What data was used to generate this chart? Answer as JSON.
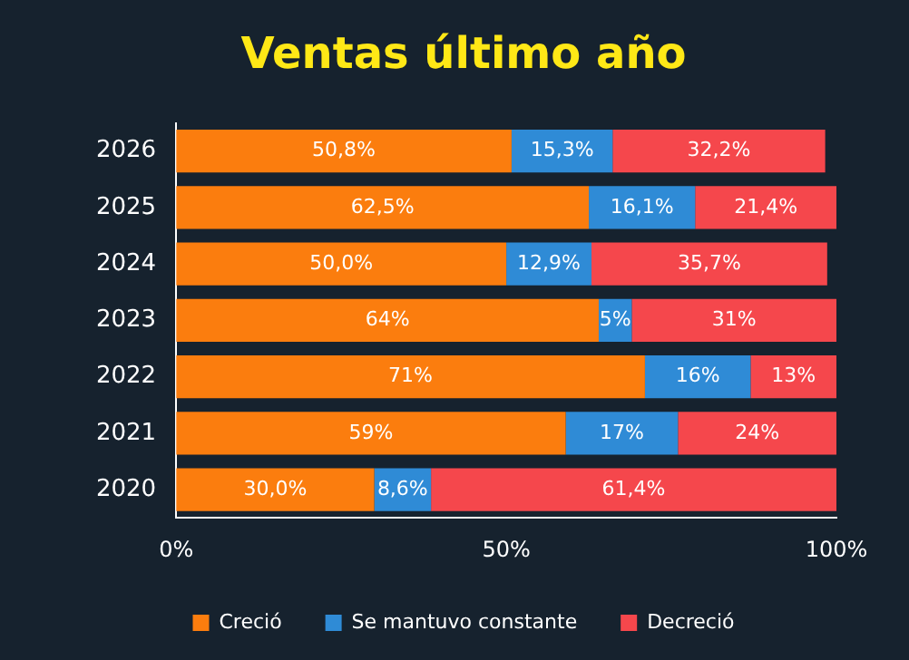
{
  "chart_data": {
    "type": "bar",
    "title": "Ventas último año",
    "orientation": "horizontal",
    "stacked": true,
    "legend": "bottom",
    "grid": false,
    "categories": [
      "2026",
      "2025",
      "2024",
      "2023",
      "2022",
      "2021",
      "2020"
    ],
    "xlim": [
      0,
      100
    ],
    "xticks": [
      {
        "value": 0,
        "label": "0%"
      },
      {
        "value": 50,
        "label": "50%"
      },
      {
        "value": 100,
        "label": "100%"
      }
    ],
    "series": [
      {
        "name": "Creció",
        "color": "#fb7d0e",
        "values": [
          50.8,
          62.5,
          50.0,
          64,
          71,
          59,
          30.0
        ],
        "value_labels": [
          "50,8%",
          "62,5%",
          "50,0%",
          "64%",
          "71%",
          "59%",
          "30,0%"
        ]
      },
      {
        "name": "Se mantuvo constante",
        "color": "#2f8bd6",
        "values": [
          15.3,
          16.1,
          12.9,
          5,
          16,
          17,
          8.6
        ],
        "value_labels": [
          "15,3%",
          "16,1%",
          "12,9%",
          "5%",
          "16%",
          "17%",
          "8,6%"
        ]
      },
      {
        "name": "Decreció",
        "color": "#f5474c",
        "values": [
          32.2,
          21.4,
          35.7,
          31,
          13,
          24,
          61.4
        ],
        "value_labels": [
          "32,2%",
          "21,4%",
          "35,7%",
          "31%",
          "13%",
          "24%",
          "61,4%"
        ]
      }
    ]
  }
}
